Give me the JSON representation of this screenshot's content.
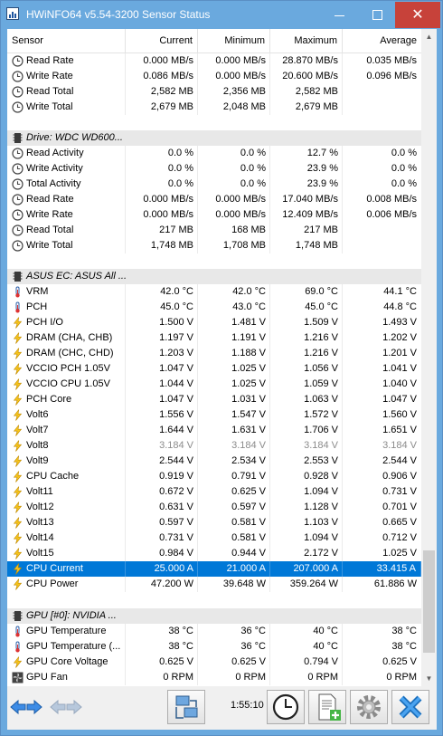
{
  "window": {
    "title": "HWiNFO64 v5.54-3200 Sensor Status",
    "close_glyph": "✕"
  },
  "columns": [
    "Sensor",
    "Current",
    "Minimum",
    "Maximum",
    "Average"
  ],
  "rows": [
    {
      "kind": "data",
      "icon": "clock-icon",
      "label": "Read Rate",
      "cur": "0.000 MB/s",
      "min": "0.000 MB/s",
      "max": "28.870 MB/s",
      "avg": "0.035 MB/s"
    },
    {
      "kind": "data",
      "icon": "clock-icon",
      "label": "Write Rate",
      "cur": "0.086 MB/s",
      "min": "0.000 MB/s",
      "max": "20.600 MB/s",
      "avg": "0.096 MB/s"
    },
    {
      "kind": "data",
      "icon": "clock-icon",
      "label": "Read Total",
      "cur": "2,582 MB",
      "min": "2,356 MB",
      "max": "2,582 MB",
      "avg": ""
    },
    {
      "kind": "data",
      "icon": "clock-icon",
      "label": "Write Total",
      "cur": "2,679 MB",
      "min": "2,048 MB",
      "max": "2,679 MB",
      "avg": ""
    },
    {
      "kind": "sep"
    },
    {
      "kind": "group",
      "icon": "drive-icon",
      "label": "Drive: WDC WD600..."
    },
    {
      "kind": "data",
      "icon": "clock-icon",
      "label": "Read Activity",
      "cur": "0.0 %",
      "min": "0.0 %",
      "max": "12.7 %",
      "avg": "0.0 %"
    },
    {
      "kind": "data",
      "icon": "clock-icon",
      "label": "Write Activity",
      "cur": "0.0 %",
      "min": "0.0 %",
      "max": "23.9 %",
      "avg": "0.0 %"
    },
    {
      "kind": "data",
      "icon": "clock-icon",
      "label": "Total Activity",
      "cur": "0.0 %",
      "min": "0.0 %",
      "max": "23.9 %",
      "avg": "0.0 %"
    },
    {
      "kind": "data",
      "icon": "clock-icon",
      "label": "Read Rate",
      "cur": "0.000 MB/s",
      "min": "0.000 MB/s",
      "max": "17.040 MB/s",
      "avg": "0.008 MB/s"
    },
    {
      "kind": "data",
      "icon": "clock-icon",
      "label": "Write Rate",
      "cur": "0.000 MB/s",
      "min": "0.000 MB/s",
      "max": "12.409 MB/s",
      "avg": "0.006 MB/s"
    },
    {
      "kind": "data",
      "icon": "clock-icon",
      "label": "Read Total",
      "cur": "217 MB",
      "min": "168 MB",
      "max": "217 MB",
      "avg": ""
    },
    {
      "kind": "data",
      "icon": "clock-icon",
      "label": "Write Total",
      "cur": "1,748 MB",
      "min": "1,708 MB",
      "max": "1,748 MB",
      "avg": ""
    },
    {
      "kind": "sep"
    },
    {
      "kind": "group",
      "icon": "chip-icon",
      "label": "ASUS EC: ASUS All ..."
    },
    {
      "kind": "data",
      "icon": "thermometer-icon",
      "label": "VRM",
      "cur": "42.0 °C",
      "min": "42.0 °C",
      "max": "69.0 °C",
      "avg": "44.1 °C"
    },
    {
      "kind": "data",
      "icon": "thermometer-icon",
      "label": "PCH",
      "cur": "45.0 °C",
      "min": "43.0 °C",
      "max": "45.0 °C",
      "avg": "44.8 °C"
    },
    {
      "kind": "data",
      "icon": "lightning-icon",
      "label": "PCH I/O",
      "cur": "1.500 V",
      "min": "1.481 V",
      "max": "1.509 V",
      "avg": "1.493 V"
    },
    {
      "kind": "data",
      "icon": "lightning-icon",
      "label": "DRAM (CHA, CHB)",
      "cur": "1.197 V",
      "min": "1.191 V",
      "max": "1.216 V",
      "avg": "1.202 V"
    },
    {
      "kind": "data",
      "icon": "lightning-icon",
      "label": "DRAM (CHC, CHD)",
      "cur": "1.203 V",
      "min": "1.188 V",
      "max": "1.216 V",
      "avg": "1.201 V"
    },
    {
      "kind": "data",
      "icon": "lightning-icon",
      "label": "VCCIO PCH 1.05V",
      "cur": "1.047 V",
      "min": "1.025 V",
      "max": "1.056 V",
      "avg": "1.041 V"
    },
    {
      "kind": "data",
      "icon": "lightning-icon",
      "label": "VCCIO CPU 1.05V",
      "cur": "1.044 V",
      "min": "1.025 V",
      "max": "1.059 V",
      "avg": "1.040 V"
    },
    {
      "kind": "data",
      "icon": "lightning-icon",
      "label": "PCH Core",
      "cur": "1.047 V",
      "min": "1.031 V",
      "max": "1.063 V",
      "avg": "1.047 V"
    },
    {
      "kind": "data",
      "icon": "lightning-icon",
      "label": "Volt6",
      "cur": "1.556 V",
      "min": "1.547 V",
      "max": "1.572 V",
      "avg": "1.560 V"
    },
    {
      "kind": "data",
      "icon": "lightning-icon",
      "label": "Volt7",
      "cur": "1.644 V",
      "min": "1.631 V",
      "max": "1.706 V",
      "avg": "1.651 V"
    },
    {
      "kind": "data",
      "icon": "lightning-icon",
      "label": "Volt8",
      "cur": "3.184 V",
      "min": "3.184 V",
      "max": "3.184 V",
      "avg": "3.184 V",
      "gray": true
    },
    {
      "kind": "data",
      "icon": "lightning-icon",
      "label": "Volt9",
      "cur": "2.544 V",
      "min": "2.534 V",
      "max": "2.553 V",
      "avg": "2.544 V"
    },
    {
      "kind": "data",
      "icon": "lightning-icon",
      "label": "CPU Cache",
      "cur": "0.919 V",
      "min": "0.791 V",
      "max": "0.928 V",
      "avg": "0.906 V"
    },
    {
      "kind": "data",
      "icon": "lightning-icon",
      "label": "Volt11",
      "cur": "0.672 V",
      "min": "0.625 V",
      "max": "1.094 V",
      "avg": "0.731 V"
    },
    {
      "kind": "data",
      "icon": "lightning-icon",
      "label": "Volt12",
      "cur": "0.631 V",
      "min": "0.597 V",
      "max": "1.128 V",
      "avg": "0.701 V"
    },
    {
      "kind": "data",
      "icon": "lightning-icon",
      "label": "Volt13",
      "cur": "0.597 V",
      "min": "0.581 V",
      "max": "1.103 V",
      "avg": "0.665 V"
    },
    {
      "kind": "data",
      "icon": "lightning-icon",
      "label": "Volt14",
      "cur": "0.731 V",
      "min": "0.581 V",
      "max": "1.094 V",
      "avg": "0.712 V"
    },
    {
      "kind": "data",
      "icon": "lightning-icon",
      "label": "Volt15",
      "cur": "0.984 V",
      "min": "0.944 V",
      "max": "2.172 V",
      "avg": "1.025 V"
    },
    {
      "kind": "data",
      "icon": "lightning-icon",
      "label": "CPU Current",
      "cur": "25.000 A",
      "min": "21.000 A",
      "max": "207.000 A",
      "avg": "33.415 A",
      "selected": true
    },
    {
      "kind": "data",
      "icon": "lightning-icon",
      "label": "CPU Power",
      "cur": "47.200 W",
      "min": "39.648 W",
      "max": "359.264 W",
      "avg": "61.886 W"
    },
    {
      "kind": "sep",
      "tall": true
    },
    {
      "kind": "group",
      "icon": "chip-icon",
      "label": "GPU [#0]: NVIDIA ..."
    },
    {
      "kind": "data",
      "icon": "thermometer-icon",
      "label": "GPU Temperature",
      "cur": "38 °C",
      "min": "36 °C",
      "max": "40 °C",
      "avg": "38 °C"
    },
    {
      "kind": "data",
      "icon": "thermometer-icon",
      "label": "GPU Temperature (...",
      "cur": "38 °C",
      "min": "36 °C",
      "max": "40 °C",
      "avg": "38 °C"
    },
    {
      "kind": "data",
      "icon": "lightning-icon",
      "label": "GPU Core Voltage",
      "cur": "0.625 V",
      "min": "0.625 V",
      "max": "0.794 V",
      "avg": "0.625 V"
    },
    {
      "kind": "data",
      "icon": "fan-icon",
      "label": "GPU Fan",
      "cur": "0 RPM",
      "min": "0 RPM",
      "max": "0 RPM",
      "avg": "0 RPM"
    }
  ],
  "toolbar": {
    "elapsed": "1:55:10"
  },
  "colors": {
    "selection": "#0078d7",
    "titlebar": "#6aa9de",
    "close": "#c7423a",
    "group_bg": "#e8e8e8"
  }
}
